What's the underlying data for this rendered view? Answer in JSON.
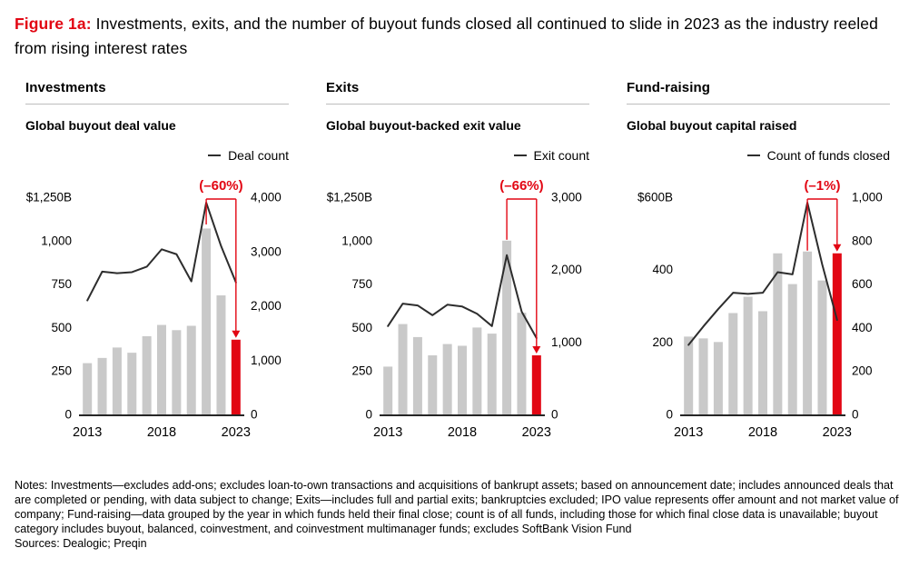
{
  "title": {
    "prefix": "Figure 1a:",
    "text": " Investments, exits, and the number of buyout funds closed all continued to slide in 2023 as the industry reeled from rising interest rates"
  },
  "colors": {
    "red": "#e20613",
    "bar_gray": "#c9c9c9",
    "line_black": "#2d2d2d",
    "axis_black": "#262626",
    "rule_gray": "#bdbdbd"
  },
  "years": [
    "2013",
    "2014",
    "2015",
    "2016",
    "2017",
    "2018",
    "2019",
    "2020",
    "2021",
    "2022",
    "2023"
  ],
  "panels": [
    {
      "header": "Investments",
      "subtitle": "Global buyout deal value",
      "legend": "Deal count"
    },
    {
      "header": "Exits",
      "subtitle": "Global buyout-backed exit value",
      "legend": "Exit count"
    },
    {
      "header": "Fund-raising",
      "subtitle": "Global buyout capital raised",
      "legend": "Count of funds closed"
    }
  ],
  "chart_data": [
    {
      "type": "bar",
      "title": "Global buyout deal value",
      "categories": [
        2013,
        2014,
        2015,
        2016,
        2017,
        2018,
        2019,
        2020,
        2021,
        2022,
        2023
      ],
      "series": [
        {
          "name": "Global buyout deal value ($B)",
          "type": "bar",
          "axis": "left",
          "values": [
            295,
            325,
            385,
            355,
            450,
            515,
            485,
            510,
            1070,
            685,
            430
          ]
        },
        {
          "name": "Deal count",
          "type": "line",
          "axis": "right",
          "values": [
            2100,
            2630,
            2600,
            2620,
            2720,
            3040,
            2950,
            2450,
            3900,
            3100,
            2430
          ]
        }
      ],
      "ylim_left": [
        0,
        1250
      ],
      "ylim_right": [
        0,
        4000
      ],
      "left_ticks": [
        {
          "text": "$1,250B",
          "v": 1250
        },
        {
          "text": "1,000",
          "v": 1000
        },
        {
          "text": "750",
          "v": 750
        },
        {
          "text": "500",
          "v": 500
        },
        {
          "text": "250",
          "v": 250
        },
        {
          "text": "0",
          "v": 0
        }
      ],
      "right_ticks": [
        {
          "text": "4,000",
          "v": 4000
        },
        {
          "text": "3,000",
          "v": 3000
        },
        {
          "text": "2,000",
          "v": 2000
        },
        {
          "text": "1,000",
          "v": 1000
        },
        {
          "text": "0",
          "v": 0
        }
      ],
      "x_ticks": [
        {
          "text": "2013",
          "i": 0
        },
        {
          "text": "2018",
          "i": 5
        },
        {
          "text": "2023",
          "i": 10
        }
      ],
      "highlight_last": true,
      "annotation": {
        "label": "(–60%)",
        "from_index": 8,
        "to_index": 10,
        "anchor": "line"
      }
    },
    {
      "type": "bar",
      "title": "Global buyout-backed exit value",
      "categories": [
        2013,
        2014,
        2015,
        2016,
        2017,
        2018,
        2019,
        2020,
        2021,
        2022,
        2023
      ],
      "series": [
        {
          "name": "Global buyout-backed exit value ($B)",
          "type": "bar",
          "axis": "left",
          "values": [
            275,
            520,
            445,
            340,
            405,
            395,
            500,
            465,
            1000,
            585,
            340
          ]
        },
        {
          "name": "Exit count",
          "type": "line",
          "axis": "right",
          "values": [
            1220,
            1530,
            1505,
            1370,
            1515,
            1490,
            1390,
            1220,
            2200,
            1420,
            1055
          ]
        }
      ],
      "ylim_left": [
        0,
        1250
      ],
      "ylim_right": [
        0,
        3000
      ],
      "left_ticks": [
        {
          "text": "$1,250B",
          "v": 1250
        },
        {
          "text": "1,000",
          "v": 1000
        },
        {
          "text": "750",
          "v": 750
        },
        {
          "text": "500",
          "v": 500
        },
        {
          "text": "250",
          "v": 250
        },
        {
          "text": "0",
          "v": 0
        }
      ],
      "right_ticks": [
        {
          "text": "3,000",
          "v": 3000
        },
        {
          "text": "2,000",
          "v": 2000
        },
        {
          "text": "1,000",
          "v": 1000
        },
        {
          "text": "0",
          "v": 0
        }
      ],
      "x_ticks": [
        {
          "text": "2013",
          "i": 0
        },
        {
          "text": "2018",
          "i": 5
        },
        {
          "text": "2023",
          "i": 10
        }
      ],
      "highlight_last": true,
      "annotation": {
        "label": "(–66%)",
        "from_index": 8,
        "to_index": 10,
        "anchor": "bar"
      }
    },
    {
      "type": "bar",
      "title": "Global buyout capital raised",
      "categories": [
        2013,
        2014,
        2015,
        2016,
        2017,
        2018,
        2019,
        2020,
        2021,
        2022,
        2023
      ],
      "series": [
        {
          "name": "Global buyout capital raised ($B)",
          "type": "bar",
          "axis": "left",
          "values": [
            215,
            210,
            200,
            280,
            325,
            285,
            445,
            360,
            450,
            370,
            445
          ]
        },
        {
          "name": "Count of funds closed",
          "type": "line",
          "axis": "right",
          "values": [
            320,
            405,
            485,
            560,
            555,
            560,
            655,
            645,
            975,
            690,
            435
          ]
        }
      ],
      "ylim_left": [
        0,
        600
      ],
      "ylim_right": [
        0,
        1000
      ],
      "left_ticks": [
        {
          "text": "$600B",
          "v": 600
        },
        {
          "text": "400",
          "v": 400
        },
        {
          "text": "200",
          "v": 200
        },
        {
          "text": "0",
          "v": 0
        }
      ],
      "right_ticks": [
        {
          "text": "1,000",
          "v": 1000
        },
        {
          "text": "800",
          "v": 800
        },
        {
          "text": "600",
          "v": 600
        },
        {
          "text": "400",
          "v": 400
        },
        {
          "text": "200",
          "v": 200
        },
        {
          "text": "0",
          "v": 0
        }
      ],
      "x_ticks": [
        {
          "text": "2013",
          "i": 0
        },
        {
          "text": "2018",
          "i": 5
        },
        {
          "text": "2023",
          "i": 10
        }
      ],
      "highlight_last": true,
      "annotation": {
        "label": "(–1%)",
        "from_index": 8,
        "to_index": 10,
        "anchor": "bar"
      }
    }
  ],
  "notes": "Notes: Investments—excludes add-ons; excludes loan-to-own transactions and acquisitions of bankrupt assets; based on announcement date; includes announced deals that are completed or pending, with data subject to change; Exits—includes full and partial exits; bankruptcies excluded; IPO value represents offer amount and not market value of company; Fund-raising—data grouped by the year in which funds held their final close; count is of all funds, including those for which final close data is unavailable; buyout category includes buyout, balanced, coinvestment, and coinvestment multimanager funds; excludes SoftBank Vision Fund",
  "sources": "Sources: Dealogic; Preqin"
}
